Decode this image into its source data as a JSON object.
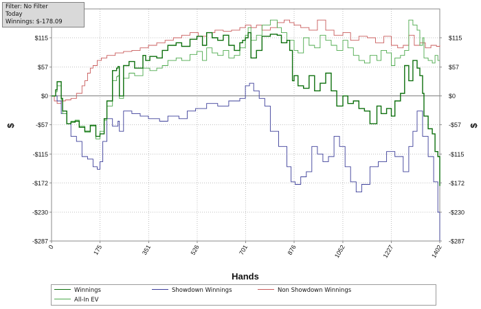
{
  "info": {
    "filter": "Filter: No Filter",
    "period": "Today",
    "winnings": "Winnings: $-178.09"
  },
  "colors": {
    "winnings": "#0b6e0b",
    "allin": "#4aa84a",
    "showdown": "#3a3c98",
    "nonshowdown": "#c85a5a",
    "grid": "#bdbdbd",
    "zero": "#7a7a7a"
  },
  "chart_data": {
    "type": "line",
    "xlabel": "Hands",
    "ylabel": "$",
    "xlim": [
      0,
      1402
    ],
    "ylim": [
      -287,
      172
    ],
    "x_ticks": [
      {
        "v": 0,
        "label": "0"
      },
      {
        "v": 175,
        "label": "175"
      },
      {
        "v": 351,
        "label": "351"
      },
      {
        "v": 526,
        "label": "526"
      },
      {
        "v": 701,
        "label": "701"
      },
      {
        "v": 876,
        "label": "876"
      },
      {
        "v": 1052,
        "label": "1052"
      },
      {
        "v": 1227,
        "label": "1227"
      },
      {
        "v": 1402,
        "label": "1402"
      }
    ],
    "y_ticks": [
      {
        "v": 115,
        "label": "$115"
      },
      {
        "v": 57,
        "label": "$57"
      },
      {
        "v": 0,
        "label": "$0"
      },
      {
        "v": -57,
        "label": "-$57"
      },
      {
        "v": -115,
        "label": "-$115"
      },
      {
        "v": -172,
        "label": "-$172"
      },
      {
        "v": -230,
        "label": "-$230"
      },
      {
        "v": -287,
        "label": "-$287"
      }
    ],
    "grid": true,
    "legend": "bottom",
    "series": [
      {
        "name": "Winnings",
        "key": "winnings",
        "x": [
          0,
          15,
          20,
          35,
          40,
          55,
          70,
          85,
          100,
          120,
          140,
          160,
          175,
          190,
          200,
          220,
          235,
          240,
          245,
          260,
          280,
          300,
          330,
          340,
          355,
          380,
          400,
          420,
          450,
          470,
          500,
          525,
          545,
          560,
          580,
          600,
          620,
          640,
          660,
          680,
          690,
          700,
          710,
          720,
          740,
          760,
          790,
          815,
          830,
          850,
          860,
          870,
          876,
          890,
          910,
          930,
          950,
          970,
          990,
          1010,
          1030,
          1052,
          1070,
          1090,
          1110,
          1130,
          1150,
          1175,
          1190,
          1210,
          1227,
          1240,
          1260,
          1275,
          1290,
          1305,
          1320,
          1330,
          1340,
          1345,
          1360,
          1375,
          1385,
          1395,
          1402
        ],
        "y": [
          0,
          12,
          28,
          -5,
          -30,
          -55,
          -52,
          -50,
          -62,
          -70,
          -58,
          -80,
          -75,
          -45,
          -10,
          50,
          55,
          58,
          0,
          60,
          68,
          55,
          80,
          70,
          78,
          75,
          90,
          100,
          105,
          98,
          112,
          118,
          100,
          125,
          115,
          110,
          120,
          100,
          90,
          105,
          110,
          115,
          125,
          75,
          90,
          118,
          122,
          120,
          105,
          110,
          90,
          30,
          40,
          20,
          15,
          40,
          10,
          25,
          45,
          10,
          -20,
          0,
          -15,
          -10,
          -25,
          -30,
          -55,
          -20,
          -35,
          -25,
          -40,
          -10,
          5,
          60,
          30,
          70,
          55,
          40,
          5,
          -40,
          -65,
          -75,
          -110,
          -120,
          -178
        ]
      },
      {
        "name": "All-In EV",
        "key": "allin",
        "x": [
          0,
          15,
          20,
          35,
          40,
          55,
          70,
          85,
          100,
          120,
          140,
          160,
          175,
          190,
          200,
          220,
          235,
          240,
          245,
          260,
          280,
          300,
          330,
          355,
          380,
          400,
          420,
          450,
          470,
          500,
          525,
          545,
          560,
          580,
          600,
          620,
          640,
          660,
          680,
          700,
          710,
          720,
          740,
          760,
          790,
          815,
          830,
          850,
          876,
          890,
          910,
          930,
          950,
          970,
          990,
          1010,
          1030,
          1052,
          1070,
          1090,
          1110,
          1130,
          1150,
          1175,
          1190,
          1210,
          1227,
          1240,
          1260,
          1275,
          1290,
          1305,
          1320,
          1330,
          1340,
          1345,
          1360,
          1375,
          1385,
          1395,
          1402
        ],
        "y": [
          0,
          8,
          20,
          -8,
          -35,
          -55,
          -50,
          -48,
          -60,
          -72,
          -60,
          -85,
          -70,
          -48,
          -20,
          30,
          38,
          40,
          -5,
          35,
          45,
          40,
          55,
          50,
          55,
          60,
          70,
          75,
          70,
          82,
          88,
          70,
          95,
          85,
          80,
          90,
          75,
          80,
          95,
          120,
          135,
          110,
          120,
          140,
          150,
          135,
          125,
          110,
          90,
          85,
          115,
          100,
          95,
          120,
          110,
          100,
          90,
          110,
          95,
          80,
          70,
          65,
          80,
          70,
          90,
          85,
          60,
          75,
          80,
          90,
          150,
          140,
          130,
          100,
          115,
          75,
          70,
          65,
          80,
          70,
          70
        ]
      },
      {
        "name": "Showdown Winnings",
        "key": "showdown",
        "x": [
          0,
          20,
          35,
          55,
          70,
          90,
          110,
          130,
          150,
          165,
          175,
          185,
          200,
          220,
          240,
          245,
          260,
          290,
          320,
          350,
          390,
          420,
          460,
          490,
          520,
          560,
          600,
          640,
          680,
          700,
          715,
          730,
          750,
          770,
          790,
          820,
          850,
          865,
          880,
          900,
          920,
          940,
          960,
          980,
          1000,
          1020,
          1040,
          1060,
          1080,
          1100,
          1120,
          1150,
          1180,
          1210,
          1240,
          1270,
          1290,
          1305,
          1320,
          1340,
          1360,
          1380,
          1395,
          1402
        ],
        "y": [
          0,
          -10,
          -35,
          -55,
          -80,
          -90,
          -120,
          -125,
          -140,
          -145,
          -130,
          -90,
          -45,
          -60,
          -50,
          -70,
          -30,
          -35,
          -40,
          -45,
          -50,
          -40,
          -45,
          -30,
          -25,
          -15,
          -20,
          -10,
          -5,
          20,
          25,
          10,
          -5,
          -20,
          -70,
          -100,
          -140,
          -170,
          -175,
          -160,
          -150,
          -100,
          -115,
          -130,
          -120,
          -80,
          -100,
          -140,
          -170,
          -190,
          -175,
          -140,
          -130,
          -110,
          -120,
          -150,
          -100,
          -70,
          -30,
          -80,
          -120,
          -170,
          -230,
          -287
        ]
      },
      {
        "name": "Non Showdown Winnings",
        "key": "nonshowdown",
        "x": [
          0,
          10,
          20,
          35,
          50,
          70,
          90,
          110,
          120,
          130,
          140,
          150,
          165,
          180,
          200,
          230,
          260,
          290,
          320,
          350,
          380,
          410,
          440,
          470,
          500,
          530,
          560,
          590,
          620,
          650,
          680,
          700,
          720,
          740,
          760,
          790,
          815,
          840,
          860,
          876,
          900,
          930,
          960,
          990,
          1020,
          1052,
          1080,
          1110,
          1140,
          1170,
          1200,
          1227,
          1250,
          1270,
          1290,
          1310,
          1330,
          1350,
          1370,
          1390,
          1402
        ],
        "y": [
          0,
          -10,
          -15,
          -10,
          -8,
          -5,
          5,
          20,
          30,
          45,
          55,
          60,
          70,
          75,
          80,
          85,
          88,
          90,
          95,
          100,
          105,
          110,
          115,
          120,
          125,
          118,
          125,
          130,
          128,
          130,
          135,
          140,
          135,
          140,
          130,
          135,
          145,
          150,
          145,
          140,
          135,
          130,
          150,
          130,
          120,
          125,
          110,
          118,
          115,
          105,
          118,
          100,
          95,
          100,
          120,
          100,
          105,
          95,
          100,
          98,
          100
        ]
      }
    ]
  },
  "legend_items": [
    {
      "label": "Winnings",
      "key": "winnings"
    },
    {
      "label": "Showdown Winnings",
      "key": "showdown"
    },
    {
      "label": "Non Showdown Winnings",
      "key": "nonshowdown"
    },
    {
      "label": "All-In EV",
      "key": "allin"
    }
  ]
}
